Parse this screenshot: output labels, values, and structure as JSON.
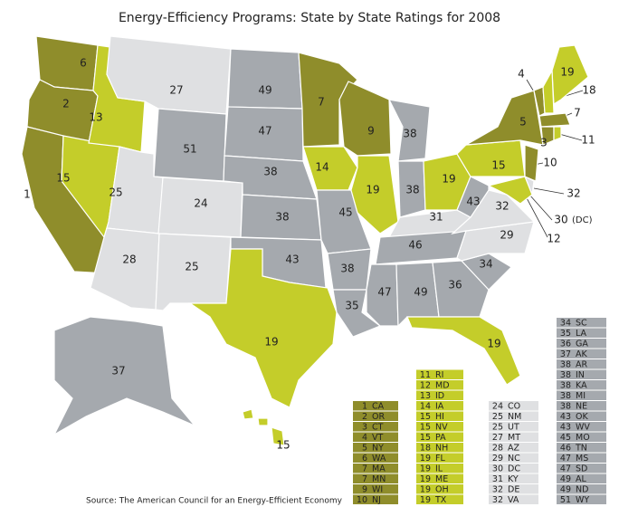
{
  "title": "Energy-Efficiency Programs: State by State Ratings for 2008",
  "source": "Source: The American Council for an Energy-Efficient Economy",
  "map": {
    "labels": [
      6,
      2,
      1,
      13,
      15,
      27,
      25,
      28,
      24,
      25,
      51,
      49,
      47,
      38,
      38,
      43,
      19,
      7,
      14,
      45,
      38,
      35,
      9,
      19,
      38,
      38,
      19,
      31,
      46,
      47,
      49,
      36,
      19,
      34,
      29,
      32,
      43,
      15,
      5,
      4,
      19,
      18,
      7,
      3,
      11,
      10,
      32,
      30,
      12,
      37,
      15
    ],
    "dc_note": "(DC)"
  },
  "legend": {
    "columns": [
      {
        "color": "#8f8d2b",
        "entries": [
          {
            "rank": 1,
            "code": "CA"
          },
          {
            "rank": 2,
            "code": "OR"
          },
          {
            "rank": 3,
            "code": "CT"
          },
          {
            "rank": 4,
            "code": "VT"
          },
          {
            "rank": 5,
            "code": "NY"
          },
          {
            "rank": 6,
            "code": "WA"
          },
          {
            "rank": 7,
            "code": "MA"
          },
          {
            "rank": 7,
            "code": "MN"
          },
          {
            "rank": 9,
            "code": "WI"
          },
          {
            "rank": 10,
            "code": "NJ"
          }
        ]
      },
      {
        "color": "#c4cd2a",
        "entries": [
          {
            "rank": 11,
            "code": "RI"
          },
          {
            "rank": 12,
            "code": "MD"
          },
          {
            "rank": 13,
            "code": "ID"
          },
          {
            "rank": 14,
            "code": "IA"
          },
          {
            "rank": 15,
            "code": "HI"
          },
          {
            "rank": 15,
            "code": "NV"
          },
          {
            "rank": 15,
            "code": "PA"
          },
          {
            "rank": 18,
            "code": "NH"
          },
          {
            "rank": 19,
            "code": "FL"
          },
          {
            "rank": 19,
            "code": "IL"
          },
          {
            "rank": 19,
            "code": "ME"
          },
          {
            "rank": 19,
            "code": "OH"
          },
          {
            "rank": 19,
            "code": "TX"
          }
        ]
      },
      {
        "color": "#dfe0e2",
        "entries": [
          {
            "rank": 24,
            "code": "CO"
          },
          {
            "rank": 25,
            "code": "NM"
          },
          {
            "rank": 25,
            "code": "UT"
          },
          {
            "rank": 27,
            "code": "MT"
          },
          {
            "rank": 28,
            "code": "AZ"
          },
          {
            "rank": 29,
            "code": "NC"
          },
          {
            "rank": 30,
            "code": "DC"
          },
          {
            "rank": 31,
            "code": "KY"
          },
          {
            "rank": 32,
            "code": "DE"
          },
          {
            "rank": 32,
            "code": "VA"
          }
        ]
      },
      {
        "color": "#a5a9ae",
        "entries": [
          {
            "rank": 34,
            "code": "SC"
          },
          {
            "rank": 35,
            "code": "LA"
          },
          {
            "rank": 36,
            "code": "GA"
          },
          {
            "rank": 37,
            "code": "AK"
          },
          {
            "rank": 38,
            "code": "AR"
          },
          {
            "rank": 38,
            "code": "IN"
          },
          {
            "rank": 38,
            "code": "KA"
          },
          {
            "rank": 38,
            "code": "MI"
          },
          {
            "rank": 38,
            "code": "NE"
          },
          {
            "rank": 43,
            "code": "OK"
          },
          {
            "rank": 43,
            "code": "WV"
          },
          {
            "rank": 45,
            "code": "MO"
          },
          {
            "rank": 46,
            "code": "TN"
          },
          {
            "rank": 47,
            "code": "MS"
          },
          {
            "rank": 47,
            "code": "SD"
          },
          {
            "rank": 49,
            "code": "AL"
          },
          {
            "rank": 49,
            "code": "ND"
          },
          {
            "rank": 51,
            "code": "WY"
          }
        ]
      }
    ]
  }
}
